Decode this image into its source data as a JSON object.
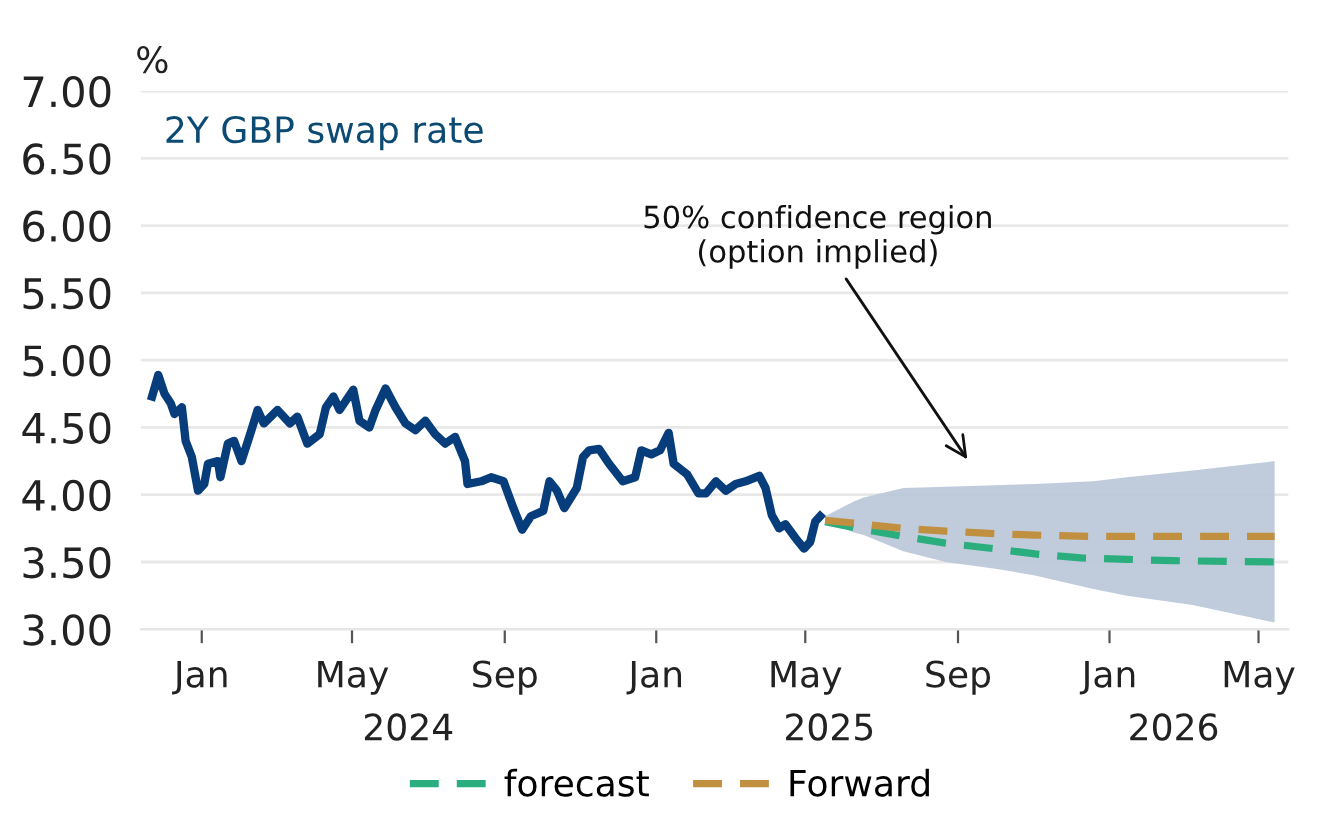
{
  "chart_data": {
    "type": "line",
    "title": "2Y GBP swap rate",
    "ylabel": "%",
    "ylim": [
      3.0,
      7.0
    ],
    "yticks": [
      {
        "value": 3.0,
        "label": "3.00"
      },
      {
        "value": 3.5,
        "label": "3.50"
      },
      {
        "value": 4.0,
        "label": "4.00"
      },
      {
        "value": 4.5,
        "label": "4.50"
      },
      {
        "value": 5.0,
        "label": "5.00"
      },
      {
        "value": 5.5,
        "label": "5.50"
      },
      {
        "value": 6.0,
        "label": "6.00"
      },
      {
        "value": 6.5,
        "label": "6.50"
      },
      {
        "value": 7.0,
        "label": "7.00"
      }
    ],
    "xlim": [
      "2023-11-13",
      "2026-05-25"
    ],
    "xticks": [
      {
        "value": "2024-01-01",
        "label": "Jan"
      },
      {
        "value": "2024-05-01",
        "label": "May"
      },
      {
        "value": "2024-09-01",
        "label": "Sep"
      },
      {
        "value": "2025-01-01",
        "label": "Jan"
      },
      {
        "value": "2025-05-01",
        "label": "May"
      },
      {
        "value": "2025-09-01",
        "label": "Sep"
      },
      {
        "value": "2026-01-01",
        "label": "Jan"
      },
      {
        "value": "2026-05-01",
        "label": "May"
      }
    ],
    "grid": "y",
    "legend": "bottom",
    "marker": "none",
    "annotations": [
      "50% confidence region\n(option implied)",
      "2024",
      "2025",
      "2026"
    ],
    "series": [
      {
        "color": "#073d7a",
        "line_style": "solid",
        "x": [
          "2023-11-22",
          "2023-11-27",
          "2023-12-02",
          "2023-12-07",
          "2023-12-10",
          "2023-12-16",
          "2023-12-19",
          "2023-12-24",
          "2023-12-29",
          "2024-01-03",
          "2024-01-06",
          "2024-01-14",
          "2024-01-16",
          "2024-01-22",
          "2024-01-27",
          "2024-02-02",
          "2024-02-10",
          "2024-02-15",
          "2024-02-20",
          "2024-03-02",
          "2024-03-12",
          "2024-03-18",
          "2024-03-26",
          "2024-04-05",
          "2024-04-10",
          "2024-04-16",
          "2024-04-21",
          "2024-05-02",
          "2024-05-07",
          "2024-05-15",
          "2024-05-20",
          "2024-05-28",
          "2024-06-05",
          "2024-06-13",
          "2024-06-21",
          "2024-06-29",
          "2024-07-07",
          "2024-07-15",
          "2024-07-23",
          "2024-07-31",
          "2024-08-02",
          "2024-08-13",
          "2024-08-21",
          "2024-08-31",
          "2024-09-08",
          "2024-09-15",
          "2024-09-22",
          "2024-10-02",
          "2024-10-07",
          "2024-10-13",
          "2024-10-19",
          "2024-10-29",
          "2024-11-03",
          "2024-11-08",
          "2024-11-16",
          "2024-11-24",
          "2024-12-05",
          "2024-12-15",
          "2024-12-20",
          "2024-12-28",
          "2025-01-04",
          "2025-01-11",
          "2025-01-15",
          "2025-01-26",
          "2025-02-04",
          "2025-02-10",
          "2025-02-18",
          "2025-02-26",
          "2025-03-06",
          "2025-03-14",
          "2025-03-25",
          "2025-03-30",
          "2025-04-04",
          "2025-04-10",
          "2025-04-15",
          "2025-04-23",
          "2025-04-30",
          "2025-05-05",
          "2025-05-09",
          "2025-05-13"
        ],
        "values": [
          4.73,
          4.89,
          4.75,
          4.68,
          4.6,
          4.65,
          4.4,
          4.28,
          4.03,
          4.08,
          4.23,
          4.25,
          4.13,
          4.38,
          4.4,
          4.25,
          4.48,
          4.63,
          4.53,
          4.63,
          4.53,
          4.58,
          4.38,
          4.45,
          4.65,
          4.73,
          4.63,
          4.78,
          4.55,
          4.5,
          4.63,
          4.79,
          4.65,
          4.53,
          4.48,
          4.55,
          4.45,
          4.38,
          4.43,
          4.25,
          4.08,
          4.1,
          4.13,
          4.1,
          3.9,
          3.74,
          3.84,
          3.88,
          4.1,
          4.03,
          3.9,
          4.05,
          4.28,
          4.33,
          4.34,
          4.23,
          4.1,
          4.13,
          4.33,
          4.3,
          4.33,
          4.46,
          4.23,
          4.15,
          4.01,
          4.01,
          4.1,
          4.03,
          4.08,
          4.1,
          4.14,
          4.05,
          3.85,
          3.75,
          3.78,
          3.68,
          3.6,
          3.65,
          3.8,
          3.84
        ]
      },
      {
        "name": "forecast",
        "color": "#2bae7e",
        "line_style": "dashed",
        "x": [
          "2025-05-17",
          "2025-06-12",
          "2025-07-19",
          "2025-08-22",
          "2025-09-29",
          "2025-11-02",
          "2025-12-09",
          "2026-01-15",
          "2026-02-21",
          "2026-05-14"
        ],
        "values": [
          3.8,
          3.75,
          3.69,
          3.64,
          3.6,
          3.56,
          3.53,
          3.52,
          3.51,
          3.5
        ]
      },
      {
        "name": "Forward",
        "color": "#c09040",
        "line_style": "dashed",
        "x": [
          "2025-05-17",
          "2025-06-09",
          "2025-06-17",
          "2025-07-19",
          "2025-08-22",
          "2025-10-01",
          "2025-11-02",
          "2025-12-19",
          "2026-01-15",
          "2026-03-09",
          "2026-05-14"
        ],
        "values": [
          3.81,
          3.79,
          3.78,
          3.75,
          3.73,
          3.71,
          3.7,
          3.69,
          3.69,
          3.69,
          3.69
        ],
        "lower": [
          3.81,
          3.72,
          3.7,
          3.58,
          3.5,
          3.45,
          3.4,
          3.3,
          3.25,
          3.18,
          3.05
        ],
        "upper": [
          3.84,
          3.95,
          3.98,
          4.05,
          4.06,
          4.07,
          4.08,
          4.1,
          4.13,
          4.18,
          4.25
        ]
      }
    ]
  }
}
